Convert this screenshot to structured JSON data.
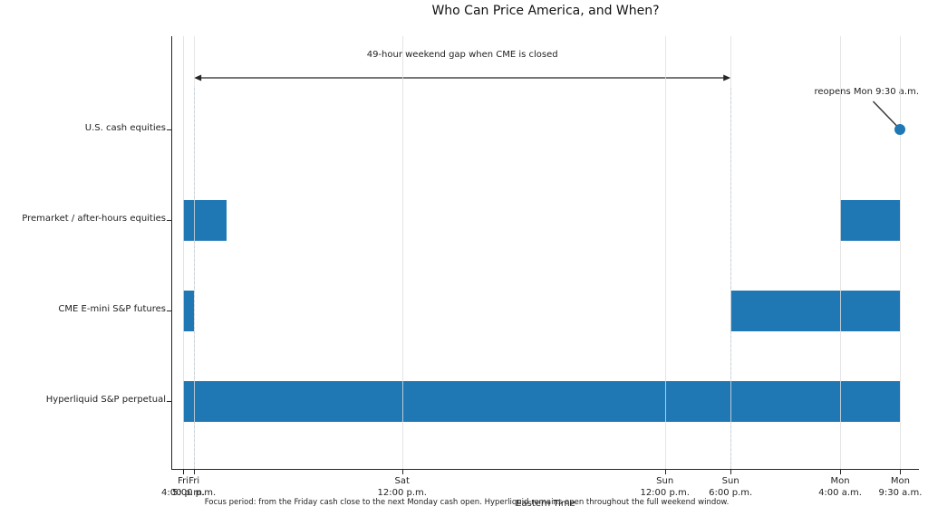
{
  "chart_data": {
    "type": "bar",
    "subtype": "horizontal-gantt-timeline",
    "title": "Who Can Price America, and When?",
    "xlabel": "Eastern Time",
    "x_unit": "hours after Friday 4:00 p.m.",
    "xlim_hours": [
      -1,
      67.2
    ],
    "grid": true,
    "legend": "none",
    "bar_color": "#1f77b4",
    "dashed_line_color": "#1f77b4",
    "x_ticks": [
      {
        "t": 0,
        "day": "Fri",
        "time": "4:00 p.m."
      },
      {
        "t": 1,
        "day": "Fri",
        "time": "5:00 p.m."
      },
      {
        "t": 20,
        "day": "Sat",
        "time": "12:00 p.m."
      },
      {
        "t": 44,
        "day": "Sun",
        "time": "12:00 p.m."
      },
      {
        "t": 50,
        "day": "Sun",
        "time": "6:00 p.m."
      },
      {
        "t": 60,
        "day": "Mon",
        "time": "4:00 a.m."
      },
      {
        "t": 65.5,
        "day": "Mon",
        "time": "9:30 a.m."
      }
    ],
    "rows": [
      {
        "label": "U.S. cash equities",
        "bars": [],
        "marker": {
          "t": 65.5,
          "annotation": "reopens Mon 9:30 a.m."
        }
      },
      {
        "label": "Premarket / after-hours equities",
        "bars": [
          [
            0,
            4
          ],
          [
            60,
            65.5
          ]
        ]
      },
      {
        "label": "CME E-mini S&P futures",
        "bars": [
          [
            0,
            1
          ],
          [
            50,
            65.5
          ]
        ]
      },
      {
        "label": "Hyperliquid S&P perpetual",
        "bars": [
          [
            0,
            65.5
          ]
        ]
      }
    ],
    "dashed_lines_t": [
      1,
      50
    ],
    "gap_annotation": {
      "label": "49-hour weekend gap when CME is closed",
      "from_t": 1,
      "to_t": 50
    },
    "caption": "Focus period: from the Friday cash close to the next Monday cash open. Hyperliquid remains open throughout the full weekend window."
  }
}
